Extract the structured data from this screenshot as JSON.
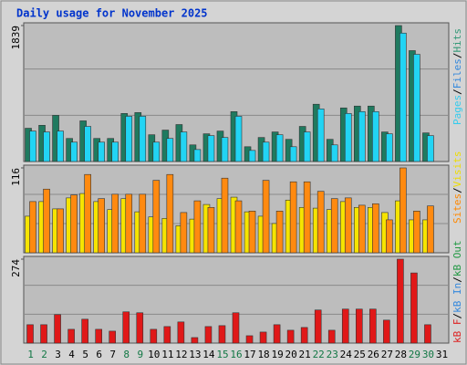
{
  "chart_data": {
    "type": "bar",
    "title": "Daily usage for November 2025",
    "legend_separator": "/",
    "categories": [
      1,
      2,
      3,
      4,
      5,
      6,
      7,
      8,
      9,
      10,
      11,
      12,
      13,
      14,
      15,
      16,
      17,
      18,
      19,
      20,
      21,
      22,
      23,
      24,
      25,
      26,
      27,
      28,
      29,
      30,
      31
    ],
    "category_colors": [
      "#117744",
      "#117744",
      "#000000",
      "#000000",
      "#000000",
      "#000000",
      "#000000",
      "#117744",
      "#117744",
      "#000000",
      "#000000",
      "#000000",
      "#000000",
      "#000000",
      "#117744",
      "#117744",
      "#000000",
      "#000000",
      "#000000",
      "#000000",
      "#000000",
      "#117744",
      "#117744",
      "#000000",
      "#000000",
      "#000000",
      "#000000",
      "#000000",
      "#117744",
      "#117744",
      "#000000"
    ],
    "panels": [
      {
        "ylim": [
          0,
          1839
        ],
        "yticks": [
          1839
        ],
        "legend": [
          {
            "name": "Pages",
            "color": "#33ccee"
          },
          {
            "name": "Files",
            "color": "#3388dd"
          },
          {
            "name": "Hits",
            "color": "#339977"
          }
        ],
        "series": [
          {
            "name": "Hits",
            "color": "#1f7a5f",
            "values": [
              450,
              490,
              625,
              312,
              550,
              312,
              312,
              650,
              662,
              362,
              425,
              500,
              225,
              375,
              412,
              675,
              200,
              325,
              400,
              300,
              475,
              775,
              300,
              725,
              750,
              750,
              400,
              1839,
              1500,
              387,
              null
            ]
          },
          {
            "name": "Pages",
            "color": "#22d4f4",
            "values": [
              412,
              400,
              412,
              262,
              475,
              262,
              262,
              612,
              612,
              262,
              312,
              400,
              162,
              350,
              325,
              612,
              150,
              262,
              362,
              200,
              400,
              712,
              225,
              650,
              675,
              675,
              375,
              1737,
              1450,
              350,
              null
            ]
          }
        ]
      },
      {
        "ylim": [
          0,
          116
        ],
        "yticks": [
          116
        ],
        "legend": [
          {
            "name": "Sites",
            "color": "#ff8800"
          },
          {
            "name": "Visits",
            "color": "#eedd00"
          }
        ],
        "series": [
          {
            "name": "Visits",
            "color": "#f6e400",
            "values": [
              50,
              70,
              60,
              75,
              81,
              70,
              59,
              74,
              56,
              49,
              47,
              37,
              46,
              66,
              74,
              76,
              56,
              50,
              40,
              72,
              62,
              61,
              59,
              70,
              62,
              62,
              55,
              71,
              45,
              45,
              null
            ]
          },
          {
            "name": "Sites",
            "color": "#ff8a10",
            "values": [
              70,
              87,
              60,
              79,
              107,
              74,
              80,
              80,
              80,
              99,
              107,
              55,
              71,
              62,
              102,
              71,
              57,
              99,
              57,
              97,
              97,
              84,
              74,
              75,
              65,
              67,
              45,
              116,
              57,
              64,
              null
            ]
          }
        ]
      },
      {
        "ylim": [
          0,
          274
        ],
        "yticks": [
          274
        ],
        "legend": [
          {
            "name": "kB F",
            "color": "#dd2222"
          },
          {
            "name": "kB In",
            "color": "#3388dd"
          },
          {
            "name": "kB Out",
            "color": "#229944"
          }
        ],
        "series": [
          {
            "name": "kB F",
            "color": "#e01818",
            "values": [
              60,
              60,
              93,
              45,
              78,
              45,
              39,
              102,
              99,
              45,
              54,
              69,
              18,
              54,
              57,
              99,
              24,
              36,
              60,
              42,
              51,
              108,
              42,
              111,
              111,
              111,
              75,
              274,
              229,
              60,
              null
            ]
          }
        ]
      }
    ]
  }
}
